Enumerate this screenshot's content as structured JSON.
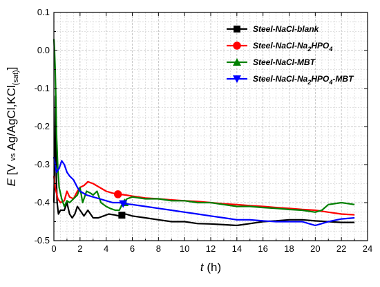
{
  "chart_data": {
    "type": "line",
    "xlabel_var": "t",
    "xlabel_unit": " (h)",
    "ylabel_var": "E",
    "ylabel_open": " [V ",
    "ylabel_vs": "vs",
    "ylabel_ref": " Ag/AgCl,KCl",
    "ylabel_sat": "(sat)",
    "ylabel_close": "]",
    "xlim": [
      0,
      24
    ],
    "ylim": [
      -0.5,
      0.1
    ],
    "x_ticks": [
      "0",
      "2",
      "4",
      "6",
      "8",
      "10",
      "12",
      "14",
      "16",
      "18",
      "20",
      "22",
      "24"
    ],
    "y_ticks": [
      "-0.5",
      "-0.4",
      "-0.3",
      "-0.2",
      "-0.1",
      "0.0",
      "0.1"
    ],
    "grid": true,
    "legend_position": "top-right",
    "series": [
      {
        "name": "Steel-NaCl-blank",
        "legend_parts": [
          "Steel-NaCl-blank"
        ],
        "color": "#000000",
        "marker": "square",
        "marker_at": [
          5.2,
          -0.433
        ],
        "points": [
          [
            0,
            -0.4
          ],
          [
            0.08,
            -0.26
          ],
          [
            0.12,
            -0.12
          ],
          [
            0.18,
            -0.33
          ],
          [
            0.25,
            -0.4
          ],
          [
            0.35,
            -0.43
          ],
          [
            0.5,
            -0.42
          ],
          [
            0.8,
            -0.42
          ],
          [
            1.0,
            -0.4
          ],
          [
            1.2,
            -0.43
          ],
          [
            1.4,
            -0.44
          ],
          [
            1.6,
            -0.43
          ],
          [
            1.8,
            -0.41
          ],
          [
            2.0,
            -0.42
          ],
          [
            2.3,
            -0.435
          ],
          [
            2.6,
            -0.42
          ],
          [
            3.0,
            -0.44
          ],
          [
            3.4,
            -0.44
          ],
          [
            3.8,
            -0.435
          ],
          [
            4.2,
            -0.43
          ],
          [
            4.6,
            -0.432
          ],
          [
            5.0,
            -0.435
          ],
          [
            5.5,
            -0.43
          ],
          [
            6.0,
            -0.435
          ],
          [
            7.0,
            -0.44
          ],
          [
            8.0,
            -0.445
          ],
          [
            9.0,
            -0.45
          ],
          [
            10.0,
            -0.45
          ],
          [
            11.0,
            -0.455
          ],
          [
            12.0,
            -0.456
          ],
          [
            13.0,
            -0.458
          ],
          [
            14.0,
            -0.46
          ],
          [
            15.0,
            -0.455
          ],
          [
            16.0,
            -0.45
          ],
          [
            17.0,
            -0.448
          ],
          [
            18.0,
            -0.445
          ],
          [
            19.0,
            -0.445
          ],
          [
            20.0,
            -0.448
          ],
          [
            21.0,
            -0.45
          ],
          [
            22.0,
            -0.452
          ],
          [
            23.0,
            -0.452
          ]
        ]
      },
      {
        "name": "Steel-NaCl-Na2HPO4",
        "legend_parts": [
          "Steel-NaCl-Na",
          "2",
          "HPO",
          "4"
        ],
        "color": "#ff0000",
        "marker": "circle",
        "marker_at": [
          4.9,
          -0.378
        ],
        "points": [
          [
            0,
            -0.33
          ],
          [
            0.1,
            -0.36
          ],
          [
            0.3,
            -0.39
          ],
          [
            0.5,
            -0.4
          ],
          [
            0.8,
            -0.395
          ],
          [
            1.0,
            -0.37
          ],
          [
            1.2,
            -0.385
          ],
          [
            1.5,
            -0.39
          ],
          [
            1.8,
            -0.37
          ],
          [
            2.0,
            -0.36
          ],
          [
            2.3,
            -0.355
          ],
          [
            2.6,
            -0.345
          ],
          [
            3.0,
            -0.35
          ],
          [
            3.5,
            -0.36
          ],
          [
            4.0,
            -0.37
          ],
          [
            4.5,
            -0.375
          ],
          [
            5.0,
            -0.378
          ],
          [
            5.5,
            -0.38
          ],
          [
            6.0,
            -0.383
          ],
          [
            7.0,
            -0.388
          ],
          [
            8.0,
            -0.39
          ],
          [
            9.0,
            -0.393
          ],
          [
            10.0,
            -0.395
          ],
          [
            11.0,
            -0.397
          ],
          [
            12.0,
            -0.4
          ],
          [
            13.0,
            -0.403
          ],
          [
            14.0,
            -0.405
          ],
          [
            15.0,
            -0.408
          ],
          [
            16.0,
            -0.41
          ],
          [
            17.0,
            -0.413
          ],
          [
            18.0,
            -0.415
          ],
          [
            19.0,
            -0.418
          ],
          [
            20.0,
            -0.42
          ],
          [
            21.0,
            -0.425
          ],
          [
            22.0,
            -0.43
          ],
          [
            23.0,
            -0.432
          ]
        ]
      },
      {
        "name": "Steel-NaCl-MBT",
        "legend_parts": [
          "Steel-NaCl-MBT"
        ],
        "color": "#008000",
        "marker": "triangle-up",
        "marker_at": [
          5.4,
          -0.4
        ],
        "points": [
          [
            0,
            0.03
          ],
          [
            0.05,
            0.0
          ],
          [
            0.1,
            -0.05
          ],
          [
            0.15,
            -0.12
          ],
          [
            0.2,
            -0.22
          ],
          [
            0.3,
            -0.31
          ],
          [
            0.4,
            -0.36
          ],
          [
            0.6,
            -0.39
          ],
          [
            0.8,
            -0.41
          ],
          [
            1.0,
            -0.395
          ],
          [
            1.2,
            -0.4
          ],
          [
            1.5,
            -0.39
          ],
          [
            1.8,
            -0.38
          ],
          [
            2.0,
            -0.36
          ],
          [
            2.2,
            -0.4
          ],
          [
            2.5,
            -0.37
          ],
          [
            2.8,
            -0.375
          ],
          [
            3.0,
            -0.38
          ],
          [
            3.3,
            -0.37
          ],
          [
            3.6,
            -0.4
          ],
          [
            4.0,
            -0.41
          ],
          [
            4.3,
            -0.415
          ],
          [
            4.7,
            -0.42
          ],
          [
            5.0,
            -0.42
          ],
          [
            5.3,
            -0.4
          ],
          [
            5.6,
            -0.39
          ],
          [
            6.0,
            -0.385
          ],
          [
            7.0,
            -0.39
          ],
          [
            8.0,
            -0.39
          ],
          [
            9.0,
            -0.395
          ],
          [
            10.0,
            -0.395
          ],
          [
            11.0,
            -0.4
          ],
          [
            12.0,
            -0.4
          ],
          [
            13.0,
            -0.405
          ],
          [
            14.0,
            -0.41
          ],
          [
            15.0,
            -0.41
          ],
          [
            16.0,
            -0.413
          ],
          [
            17.0,
            -0.415
          ],
          [
            18.0,
            -0.418
          ],
          [
            19.0,
            -0.42
          ],
          [
            20.0,
            -0.425
          ],
          [
            20.5,
            -0.42
          ],
          [
            21.0,
            -0.405
          ],
          [
            22.0,
            -0.4
          ],
          [
            23.0,
            -0.405
          ]
        ]
      },
      {
        "name": "Steel-NaCl-Na2HPO4-MBT",
        "legend_parts": [
          "Steel-NaCl-Na",
          "2",
          "HPO",
          "4",
          "-MBT"
        ],
        "color": "#0000ff",
        "marker": "triangle-down",
        "marker_at": [
          5.3,
          -0.403
        ],
        "points": [
          [
            0,
            -0.28
          ],
          [
            0.2,
            -0.32
          ],
          [
            0.4,
            -0.31
          ],
          [
            0.6,
            -0.29
          ],
          [
            0.8,
            -0.3
          ],
          [
            1.0,
            -0.32
          ],
          [
            1.2,
            -0.33
          ],
          [
            1.5,
            -0.34
          ],
          [
            1.8,
            -0.36
          ],
          [
            2.0,
            -0.37
          ],
          [
            2.5,
            -0.38
          ],
          [
            3.0,
            -0.385
          ],
          [
            3.5,
            -0.39
          ],
          [
            4.0,
            -0.395
          ],
          [
            4.5,
            -0.4
          ],
          [
            5.0,
            -0.4
          ],
          [
            5.5,
            -0.403
          ],
          [
            6.0,
            -0.405
          ],
          [
            7.0,
            -0.41
          ],
          [
            8.0,
            -0.415
          ],
          [
            9.0,
            -0.42
          ],
          [
            10.0,
            -0.425
          ],
          [
            11.0,
            -0.43
          ],
          [
            12.0,
            -0.435
          ],
          [
            13.0,
            -0.44
          ],
          [
            14.0,
            -0.445
          ],
          [
            15.0,
            -0.445
          ],
          [
            16.0,
            -0.448
          ],
          [
            17.0,
            -0.45
          ],
          [
            18.0,
            -0.45
          ],
          [
            19.0,
            -0.45
          ],
          [
            19.5,
            -0.455
          ],
          [
            20.0,
            -0.46
          ],
          [
            20.5,
            -0.455
          ],
          [
            21.0,
            -0.45
          ],
          [
            22.0,
            -0.443
          ],
          [
            23.0,
            -0.44
          ]
        ]
      }
    ]
  }
}
